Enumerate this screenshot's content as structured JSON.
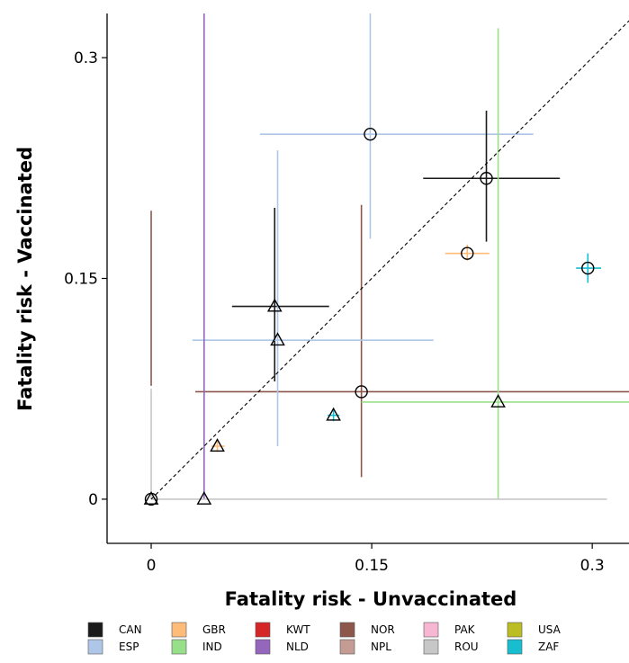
{
  "chart_data": {
    "type": "scatter",
    "title": "",
    "xlabel": "Fatality risk - Unvaccinated",
    "ylabel": "Fatality risk - Vaccinated",
    "xlim": [
      -0.03,
      0.325
    ],
    "ylim": [
      -0.03,
      0.33
    ],
    "x_ticks": [
      0,
      0.15,
      0.3
    ],
    "y_ticks": [
      0,
      0.15,
      0.3
    ],
    "x_tick_labels": [
      "0",
      "0.15",
      "0.3"
    ],
    "y_tick_labels": [
      "0",
      "0.15",
      "0.3"
    ],
    "grid": false,
    "reference_line": "y = x (dashed)",
    "legend_position": "bottom",
    "marker_shapes": [
      "circle",
      "triangle"
    ],
    "legend": [
      {
        "code": "CAN",
        "color": "#1a1a1a"
      },
      {
        "code": "ESP",
        "color": "#aec7e8"
      },
      {
        "code": "GBR",
        "color": "#ffbb78"
      },
      {
        "code": "IND",
        "color": "#98df8a"
      },
      {
        "code": "KWT",
        "color": "#d62728"
      },
      {
        "code": "NLD",
        "color": "#9467bd"
      },
      {
        "code": "NOR",
        "color": "#8c564b"
      },
      {
        "code": "NPL",
        "color": "#c49c94"
      },
      {
        "code": "PAK",
        "color": "#f7b6d2"
      },
      {
        "code": "ROU",
        "color": "#c7c7c7"
      },
      {
        "code": "USA",
        "color": "#bcbd22"
      },
      {
        "code": "ZAF",
        "color": "#17becf"
      }
    ],
    "points": [
      {
        "country": "ESP",
        "marker": "circle",
        "x": 0.149,
        "y": 0.248,
        "x_err": [
          0.074,
          0.26
        ],
        "y_err": [
          0.177,
          0.33
        ]
      },
      {
        "country": "CAN",
        "marker": "circle",
        "x": 0.228,
        "y": 0.218,
        "x_err": [
          0.185,
          0.278
        ],
        "y_err": [
          0.175,
          0.264
        ]
      },
      {
        "country": "GBR",
        "marker": "circle",
        "x": 0.215,
        "y": 0.167,
        "x_err": [
          0.2,
          0.23
        ],
        "y_err": [
          0.162,
          0.173
        ]
      },
      {
        "country": "ZAF",
        "marker": "circle",
        "x": 0.297,
        "y": 0.157,
        "x_err": [
          0.289,
          0.306
        ],
        "y_err": [
          0.147,
          0.167
        ]
      },
      {
        "country": "NOR",
        "marker": "circle",
        "x": 0.143,
        "y": 0.073,
        "x_err": [
          0.03,
          0.325
        ],
        "y_err": [
          0.015,
          0.2
        ]
      },
      {
        "country": "CAN",
        "marker": "triangle",
        "x": 0.084,
        "y": 0.131,
        "x_err": [
          0.055,
          0.121
        ],
        "y_err": [
          0.08,
          0.198
        ]
      },
      {
        "country": "ESP",
        "marker": "triangle",
        "x": 0.086,
        "y": 0.108,
        "x_err": [
          0.028,
          0.192
        ],
        "y_err": [
          0.036,
          0.237
        ]
      },
      {
        "country": "ZAF",
        "marker": "triangle",
        "x": 0.124,
        "y": 0.057,
        "x_err": [
          0.12,
          0.128
        ],
        "y_err": [
          0.053,
          0.062
        ]
      },
      {
        "country": "GBR",
        "marker": "triangle",
        "x": 0.045,
        "y": 0.036,
        "x_err": [
          0.041,
          0.05
        ],
        "y_err": [
          0.032,
          0.041
        ]
      },
      {
        "country": "IND",
        "marker": "triangle",
        "x": 0.236,
        "y": 0.066,
        "x_err": [
          0.143,
          0.325
        ],
        "y_err": [
          0,
          0.32
        ]
      },
      {
        "country": "NLD",
        "marker": "triangle",
        "x": 0.036,
        "y": 0.0,
        "x_err": null,
        "y_err": [
          0,
          0.33
        ]
      },
      {
        "country": "ROU",
        "marker": "circle",
        "x": 0.0,
        "y": 0.0,
        "x_err": [
          0,
          0.31
        ],
        "y_err": [
          0,
          0.075
        ]
      },
      {
        "country": "NOR",
        "marker": "triangle",
        "x": 0.0,
        "y": 0.0,
        "x_err": null,
        "y_err": [
          0.077,
          0.196
        ]
      }
    ]
  }
}
